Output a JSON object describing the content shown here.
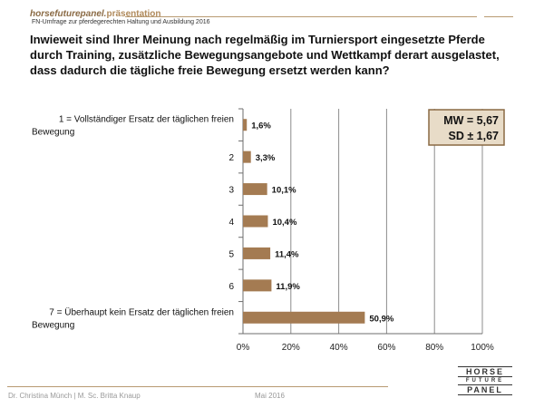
{
  "header": {
    "brand": "horsefuturepanel.",
    "brand_suffix": "präsentation",
    "subtitle": "FN-Umfrage zur pferdegerechten Haltung und Ausbildung 2016"
  },
  "footer": {
    "authors": "Dr. Christina Münch | M. Sc. Britta Knaup",
    "date": "Mai 2016",
    "logo": {
      "line1": "HORSE",
      "line2": "FUTURE",
      "line3": "PANEL"
    }
  },
  "stats": {
    "mean": "MW = 5,67",
    "sd": "SD ± 1,67"
  },
  "colors": {
    "bar": "#a47b52",
    "accent": "#b89a72",
    "stats_fill": "#e8dcc8",
    "stats_border": "#8a6a44"
  },
  "chart_data": {
    "type": "bar",
    "orientation": "horizontal",
    "title": "Inwieweit sind Ihrer Meinung nach regelmäßig im Turniersport eingesetzte Pferde durch Training, zusätzliche Bewegungsangebote und Wettkampf derart ausgelastet, dass dadurch die tägliche freie Bewegung ersetzt werden kann?",
    "categories": [
      [
        "1 = Vollständiger Ersatz der täglichen freien",
        "Bewegung"
      ],
      [
        "2"
      ],
      [
        "3"
      ],
      [
        "4"
      ],
      [
        "5"
      ],
      [
        "6"
      ],
      [
        "7 = Überhaupt kein Ersatz der täglichen freien",
        "Bewegung"
      ]
    ],
    "values": [
      1.6,
      3.3,
      10.1,
      10.4,
      11.4,
      11.9,
      50.9
    ],
    "value_labels": [
      "1,6%",
      "3,3%",
      "10,1%",
      "10,4%",
      "11,4%",
      "11,9%",
      "50,9%"
    ],
    "xlim": [
      0,
      100
    ],
    "ticks": [
      0,
      20,
      40,
      60,
      80,
      100
    ],
    "tick_labels": [
      "0%",
      "20%",
      "40%",
      "60%",
      "80%",
      "100%"
    ],
    "grid": true
  }
}
